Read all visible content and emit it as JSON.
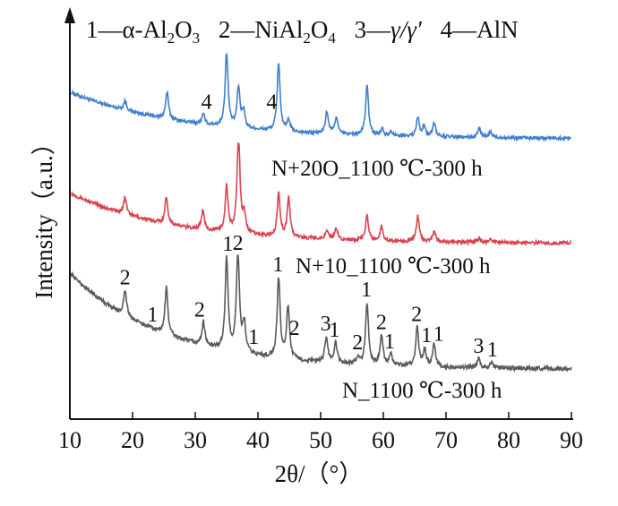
{
  "chart_data": {
    "type": "line",
    "legend": {
      "items": [
        {
          "num": "1",
          "sep": "—",
          "base": "α-Al",
          "sub1": "2",
          "mid": "O",
          "sub2": "3"
        },
        {
          "num": "2",
          "sep": "—",
          "base": "NiAl",
          "sub1": "2",
          "mid": "O",
          "sub2": "4"
        },
        {
          "num": "3",
          "sep": "—",
          "text": "γ/γ′"
        },
        {
          "num": "4",
          "sep": "—",
          "text": "AlN"
        }
      ]
    },
    "xlabel": "2θ/（°）",
    "ylabel": "Intensity（a.u.）",
    "xlim": [
      10,
      90
    ],
    "xticks": [
      "10",
      "20",
      "30",
      "40",
      "50",
      "60",
      "70",
      "80",
      "90"
    ],
    "series": [
      {
        "name": "N+20O_1100 ℃-300 h",
        "color": "#3f7fcc",
        "baseline_start": 0.52,
        "baseline_end": 0.03,
        "decay": 18,
        "peaks": [
          [
            18.8,
            0.1
          ],
          [
            25.5,
            0.28
          ],
          [
            31.3,
            0.1
          ],
          [
            35.0,
            0.78
          ],
          [
            36.9,
            0.42
          ],
          [
            37.7,
            0.18
          ],
          [
            43.3,
            0.72
          ],
          [
            44.9,
            0.12
          ],
          [
            51.0,
            0.23
          ],
          [
            52.5,
            0.18
          ],
          [
            57.4,
            0.52
          ],
          [
            59.8,
            0.07
          ],
          [
            61.2,
            0.05
          ],
          [
            65.5,
            0.2
          ],
          [
            66.5,
            0.1
          ],
          [
            68.1,
            0.15
          ],
          [
            75.3,
            0.1
          ],
          [
            77.1,
            0.06
          ]
        ],
        "labels": [
          {
            "x": 31.8,
            "text": "4"
          },
          {
            "x": 42.2,
            "text": "4"
          }
        ]
      },
      {
        "name": "N+10_1100 ℃-300 h",
        "color": "#d9434f",
        "baseline_start": 0.52,
        "baseline_end": 0.03,
        "decay": 16,
        "peaks": [
          [
            18.8,
            0.16
          ],
          [
            25.4,
            0.26
          ],
          [
            31.2,
            0.18
          ],
          [
            35.0,
            0.44
          ],
          [
            36.9,
            0.95
          ],
          [
            37.8,
            0.18
          ],
          [
            43.3,
            0.42
          ],
          [
            44.9,
            0.38
          ],
          [
            51.0,
            0.09
          ],
          [
            52.5,
            0.11
          ],
          [
            57.4,
            0.24
          ],
          [
            59.7,
            0.14
          ],
          [
            65.5,
            0.25
          ],
          [
            68.1,
            0.1
          ],
          [
            75.3,
            0.04
          ],
          [
            77.1,
            0.04
          ]
        ],
        "labels": []
      },
      {
        "name": "N_1100 ℃-300 h",
        "color": "#5a5a5a",
        "baseline_start": 0.85,
        "baseline_end": 0.03,
        "decay": 15,
        "peaks": [
          [
            18.8,
            0.22
          ],
          [
            25.4,
            0.4
          ],
          [
            31.3,
            0.2
          ],
          [
            35.0,
            0.78
          ],
          [
            36.8,
            0.86
          ],
          [
            37.8,
            0.25
          ],
          [
            43.3,
            0.68
          ],
          [
            44.8,
            0.45
          ],
          [
            50.9,
            0.22
          ],
          [
            52.4,
            0.17
          ],
          [
            55.9,
            0.06
          ],
          [
            57.4,
            0.53
          ],
          [
            59.7,
            0.25
          ],
          [
            61.2,
            0.09
          ],
          [
            65.4,
            0.33
          ],
          [
            66.6,
            0.14
          ],
          [
            68.1,
            0.19
          ],
          [
            75.2,
            0.08
          ],
          [
            77.2,
            0.05
          ]
        ],
        "labels": [
          {
            "x": 18.8,
            "text": "2"
          },
          {
            "x": 23.2,
            "text": "1"
          },
          {
            "x": 30.7,
            "text": "2"
          },
          {
            "x": 35.2,
            "text": "1"
          },
          {
            "x": 36.8,
            "text": "2"
          },
          {
            "x": 39.3,
            "text": "1"
          },
          {
            "x": 43.2,
            "text": "1"
          },
          {
            "x": 45.8,
            "text": "2"
          },
          {
            "x": 50.8,
            "text": "3"
          },
          {
            "x": 52.2,
            "text": "1"
          },
          {
            "x": 55.9,
            "text": "2"
          },
          {
            "x": 57.3,
            "text": "1"
          },
          {
            "x": 59.7,
            "text": "2"
          },
          {
            "x": 61.0,
            "text": "1"
          },
          {
            "x": 65.3,
            "text": "2"
          },
          {
            "x": 66.9,
            "text": "1"
          },
          {
            "x": 68.8,
            "text": "1"
          },
          {
            "x": 75.2,
            "text": "3"
          },
          {
            "x": 77.4,
            "text": "1"
          }
        ]
      }
    ]
  }
}
